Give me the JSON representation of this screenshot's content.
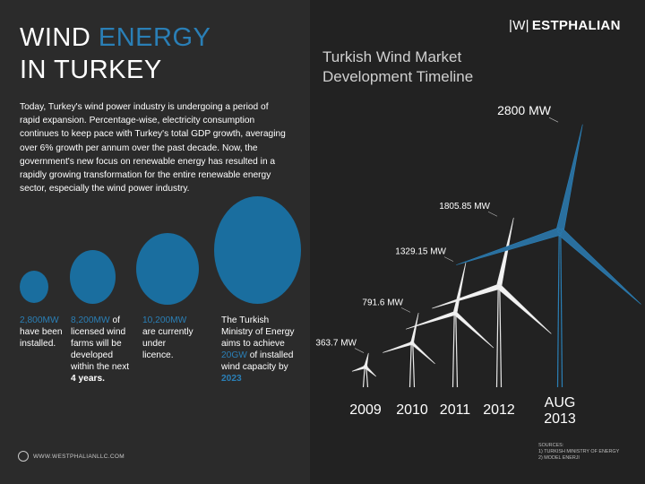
{
  "brand": {
    "logo_mark": "|W|",
    "logo_text": "ESTPHALIAN",
    "website": "WWW.WESTPHALIANLLC.COM"
  },
  "title": {
    "word1": "WIND",
    "word2": "ENERGY",
    "line2": "IN TURKEY"
  },
  "intro_text": "Today, Turkey's wind power industry is undergoing a period of rapid expansion.  Percentage-wise, electricity consumption continues to keep pace with Turkey's total GDP growth, averaging over 6% growth per annum over the past decade.  Now, the government's new focus on renewable energy has resulted in a rapidly growing transformation for the entire renewable energy sector, especially the wind power industry.",
  "stats": [
    {
      "highlight": "2,800MW",
      "text": "have been installed."
    },
    {
      "highlight": "8,200MW",
      "text": "of licensed wind farms will be developed within the next",
      "bold": "4 years."
    },
    {
      "highlight": "10,200MW",
      "text": "are currently under licence."
    },
    {
      "lead": "The Turkish Ministry of Energy aims to achieve",
      "highlight": "20GW",
      "text": "of installed wind capacity by",
      "bold_highlight": "2023"
    }
  ],
  "chart_title_line1": "Turkish Wind Market",
  "chart_title_line2": "Development Timeline",
  "sources": [
    "SOURCES:",
    "1) TURKISH MINISTRY OF ENERGY",
    "2) MODEL ENERJI"
  ],
  "colors": {
    "accent": "#2a7fb6",
    "bubble": "#1a6e9f",
    "panel": "#2b2b2b",
    "background": "#222222"
  },
  "chart_data": {
    "type": "bar",
    "categories": [
      "2009",
      "2010",
      "2011",
      "2012",
      "AUG 2013"
    ],
    "values": [
      363.7,
      791.6,
      1329.15,
      1805.85,
      2800
    ],
    "value_labels": [
      "363.7 MW",
      "791.6 MW",
      "1329.15 MW",
      "1805.85 MW",
      "2800 MW"
    ],
    "mark": "wind-turbine",
    "highlight_last": true
  }
}
